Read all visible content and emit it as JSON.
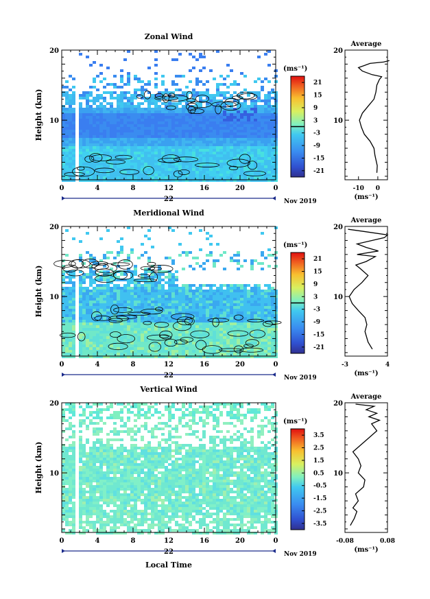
{
  "chart_data": [
    {
      "type": "heatmap",
      "title": "Zonal Wind",
      "ylabel": "Height (km)",
      "ylim": [
        1.5,
        20
      ],
      "yticks": [
        "10",
        "20"
      ],
      "xticks": [
        "0",
        "4",
        "8",
        "12",
        "16",
        "20",
        "0"
      ],
      "xlim": [
        0,
        24
      ],
      "date_labels": [
        "22",
        "Nov 2019"
      ],
      "colorbar": {
        "unit": "(ms⁻¹)",
        "ticks": [
          "21",
          "15",
          "9",
          "3",
          "-3",
          "-9",
          "-15",
          "-21"
        ],
        "range": [
          -24,
          24
        ]
      },
      "contour_level": 0,
      "average": {
        "title": "Average",
        "xlabel": "(ms⁻¹)",
        "xticks": [
          "-10",
          "0"
        ],
        "xlim": [
          -17,
          5
        ],
        "profile": [
          [
            -0.5,
            2.5
          ],
          [
            -0.3,
            3.5
          ],
          [
            -1.5,
            5
          ],
          [
            -2,
            6
          ],
          [
            -4,
            7
          ],
          [
            -7,
            8
          ],
          [
            -8.5,
            9
          ],
          [
            -9.5,
            10
          ],
          [
            -8,
            11
          ],
          [
            -5,
            12
          ],
          [
            -2,
            13
          ],
          [
            -1,
            14
          ],
          [
            -0.5,
            15
          ],
          [
            0.8,
            15.8
          ],
          [
            2,
            16.2
          ],
          [
            -3,
            16.5
          ],
          [
            -8,
            17
          ],
          [
            -10,
            17.5
          ],
          [
            -7,
            17.8
          ],
          [
            -4,
            18.1
          ],
          [
            3,
            18.3
          ],
          [
            6,
            18.5
          ]
        ]
      }
    },
    {
      "type": "heatmap",
      "title": "Meridional Wind",
      "ylabel": "Height (km)",
      "ylim": [
        1.5,
        20
      ],
      "yticks": [
        "10",
        "20"
      ],
      "xticks": [
        "0",
        "4",
        "8",
        "12",
        "16",
        "20",
        "0"
      ],
      "xlim": [
        0,
        24
      ],
      "date_labels": [
        "22",
        "Nov 2019"
      ],
      "colorbar": {
        "unit": "(ms⁻¹)",
        "ticks": [
          "21",
          "15",
          "9",
          "3",
          "-3",
          "-9",
          "-15",
          "-21"
        ],
        "range": [
          -24,
          24
        ]
      },
      "contour_level": 0,
      "average": {
        "title": "Average",
        "xlabel": "(ms⁻¹)",
        "xticks": [
          "-3",
          "4"
        ],
        "xlim": [
          -3,
          4
        ],
        "profile": [
          [
            1.5,
            2.5
          ],
          [
            0.8,
            3.5
          ],
          [
            0.3,
            5
          ],
          [
            0.6,
            6
          ],
          [
            0.3,
            7
          ],
          [
            -0.8,
            8
          ],
          [
            -1.8,
            9
          ],
          [
            -2.3,
            10
          ],
          [
            -1.5,
            11
          ],
          [
            -0.2,
            12
          ],
          [
            0.8,
            13
          ],
          [
            -0.5,
            14
          ],
          [
            -1.2,
            14.5
          ],
          [
            0.5,
            15
          ],
          [
            2,
            15.7
          ],
          [
            -1,
            16
          ],
          [
            2.5,
            16.5
          ],
          [
            0.5,
            17
          ],
          [
            -1,
            17.5
          ],
          [
            1.5,
            18
          ],
          [
            3.5,
            18.4
          ],
          [
            4,
            18.8
          ],
          [
            0,
            19.3
          ],
          [
            -2.5,
            19.6
          ]
        ]
      }
    },
    {
      "type": "heatmap",
      "title": "Vertical Wind",
      "ylabel": "Height (km)",
      "xlabel": "Local Time",
      "ylim": [
        1.5,
        20
      ],
      "yticks": [
        "10",
        "20"
      ],
      "xticks": [
        "0",
        "4",
        "8",
        "12",
        "16",
        "20",
        "0"
      ],
      "xlim": [
        0,
        24
      ],
      "date_labels": [
        "22",
        "Nov 2019"
      ],
      "colorbar": {
        "unit": "(ms⁻¹)",
        "ticks": [
          "3.5",
          "2.5",
          "1.5",
          "0.5",
          "-0.5",
          "-1.5",
          "-2.5",
          "-3.5"
        ],
        "range": [
          -4,
          4
        ]
      },
      "average": {
        "title": "Average",
        "xlabel": "(ms⁻¹)",
        "xticks": [
          "-0.08",
          "0.08"
        ],
        "xlim": [
          -0.08,
          0.08
        ],
        "profile": [
          [
            -0.06,
            2.5
          ],
          [
            -0.045,
            3.5
          ],
          [
            -0.035,
            4.5
          ],
          [
            -0.05,
            5
          ],
          [
            -0.03,
            6
          ],
          [
            -0.04,
            7
          ],
          [
            -0.01,
            8
          ],
          [
            -0.005,
            9
          ],
          [
            -0.03,
            10
          ],
          [
            -0.02,
            11
          ],
          [
            -0.03,
            12
          ],
          [
            -0.05,
            13
          ],
          [
            -0.02,
            14
          ],
          [
            0.01,
            15
          ],
          [
            0.04,
            16
          ],
          [
            0.02,
            17
          ],
          [
            0.05,
            17.5
          ],
          [
            0.01,
            18
          ],
          [
            0.04,
            18.5
          ],
          [
            0.0,
            19
          ],
          [
            0.03,
            19.5
          ],
          [
            -0.04,
            19.8
          ]
        ]
      }
    }
  ]
}
